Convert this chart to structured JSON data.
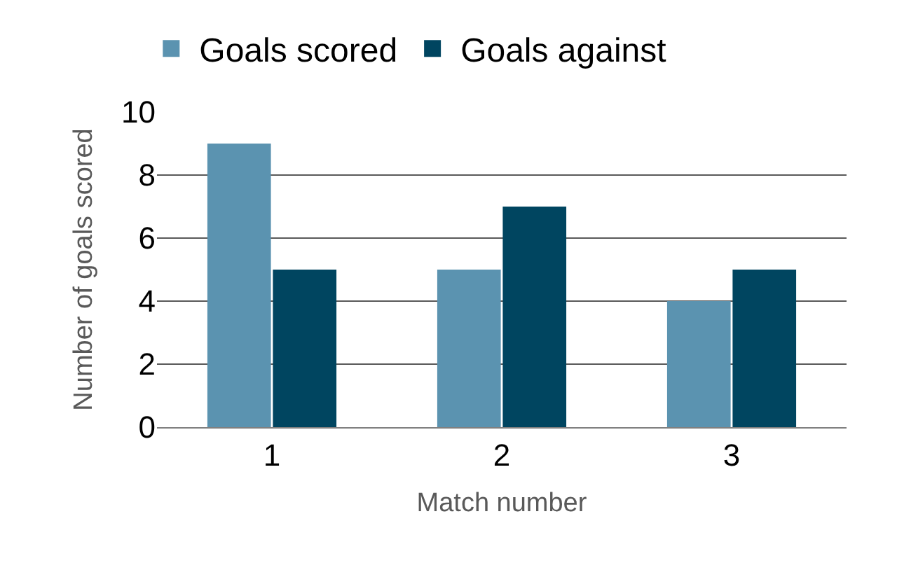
{
  "chart_data": {
    "type": "bar",
    "xlabel": "Match number",
    "ylabel": "Number of goals scored",
    "categories": [
      "1",
      "2",
      "3"
    ],
    "series": [
      {
        "name": "Goals scored",
        "color": "#5b93b0",
        "values": [
          9,
          5,
          4
        ]
      },
      {
        "name": "Goals against",
        "color": "#004560",
        "values": [
          5,
          7,
          5
        ]
      }
    ],
    "ylim": [
      0,
      10
    ],
    "yticks": [
      0,
      2,
      4,
      6,
      8,
      10
    ],
    "grid": "y",
    "legend": "top"
  }
}
